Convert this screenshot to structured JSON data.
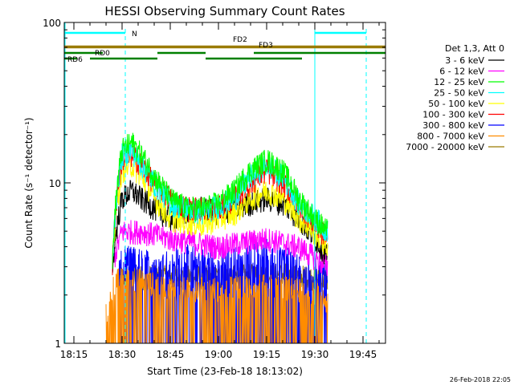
{
  "chart_data": {
    "type": "line",
    "title": "HESSI Observing Summary Count Rates",
    "xlabel": "Start Time (23-Feb-18 18:13:02)",
    "ylabel": "Count Rate (s⁻¹ detector⁻¹)",
    "yscale": "log",
    "ylim": [
      1,
      100
    ],
    "y_ticks": [
      {
        "value": 1,
        "label": "1"
      },
      {
        "value": 10,
        "label": "10"
      },
      {
        "value": 100,
        "label": "100"
      }
    ],
    "xlim": [
      "18:12",
      "19:52"
    ],
    "x_ticks": [
      "18:15",
      "18:30",
      "18:45",
      "19:00",
      "19:15",
      "19:30",
      "19:45"
    ],
    "legend_header": "Det 1,3, Att 0",
    "legend_position": "right",
    "data_start": "18:25",
    "data_end": "19:37",
    "series": [
      {
        "name": "3 - 6 keV",
        "color": "#000000",
        "profile": [
          [
            "18:27",
            3
          ],
          [
            "18:30",
            8
          ],
          [
            "18:33",
            9
          ],
          [
            "18:36",
            8
          ],
          [
            "18:40",
            7
          ],
          [
            "18:45",
            6
          ],
          [
            "18:50",
            6.5
          ],
          [
            "18:55",
            7
          ],
          [
            "19:00",
            6.5
          ],
          [
            "19:05",
            7
          ],
          [
            "19:10",
            7.5
          ],
          [
            "19:15",
            8
          ],
          [
            "19:20",
            7.5
          ],
          [
            "19:25",
            6
          ],
          [
            "19:30",
            4.5
          ],
          [
            "19:34",
            3.5
          ]
        ]
      },
      {
        "name": "6 - 12 keV",
        "color": "#ff00ff",
        "profile": [
          [
            "18:27",
            3
          ],
          [
            "18:30",
            5
          ],
          [
            "18:36",
            5
          ],
          [
            "18:45",
            4.5
          ],
          [
            "19:00",
            4
          ],
          [
            "19:15",
            4.5
          ],
          [
            "19:25",
            4
          ],
          [
            "19:34",
            3
          ]
        ]
      },
      {
        "name": "12 - 25 keV",
        "color": "#00ff00",
        "profile": [
          [
            "18:27",
            3
          ],
          [
            "18:30",
            16
          ],
          [
            "18:33",
            18
          ],
          [
            "18:36",
            15
          ],
          [
            "18:40",
            11
          ],
          [
            "18:45",
            8
          ],
          [
            "18:50",
            7
          ],
          [
            "18:55",
            7
          ],
          [
            "19:00",
            7.5
          ],
          [
            "19:05",
            9
          ],
          [
            "19:10",
            12
          ],
          [
            "19:15",
            14
          ],
          [
            "19:20",
            12
          ],
          [
            "19:25",
            8
          ],
          [
            "19:30",
            6
          ],
          [
            "19:34",
            5
          ]
        ]
      },
      {
        "name": "25 - 50 keV",
        "color": "#00ffff",
        "profile": [
          [
            "18:27",
            3
          ],
          [
            "18:30",
            15
          ],
          [
            "18:33",
            16
          ],
          [
            "18:36",
            13
          ],
          [
            "18:40",
            10
          ],
          [
            "18:45",
            7.5
          ],
          [
            "18:55",
            6.5
          ],
          [
            "19:05",
            8
          ],
          [
            "19:10",
            11
          ],
          [
            "19:15",
            13
          ],
          [
            "19:20",
            11
          ],
          [
            "19:25",
            7.5
          ],
          [
            "19:34",
            5
          ]
        ]
      },
      {
        "name": "50 - 100 keV",
        "color": "#ffff00",
        "profile": [
          [
            "18:27",
            3
          ],
          [
            "18:30",
            12
          ],
          [
            "18:33",
            13
          ],
          [
            "18:36",
            11
          ],
          [
            "18:40",
            8
          ],
          [
            "18:45",
            6
          ],
          [
            "18:55",
            5.5
          ],
          [
            "19:05",
            6.5
          ],
          [
            "19:10",
            8
          ],
          [
            "19:15",
            9
          ],
          [
            "19:20",
            8
          ],
          [
            "19:25",
            6
          ],
          [
            "19:34",
            4
          ]
        ]
      },
      {
        "name": "100 - 300 keV",
        "color": "#ff0000",
        "profile": [
          [
            "18:27",
            3
          ],
          [
            "18:30",
            14
          ],
          [
            "18:33",
            15
          ],
          [
            "18:36",
            13
          ],
          [
            "18:40",
            10
          ],
          [
            "18:45",
            8
          ],
          [
            "18:50",
            7
          ],
          [
            "18:55",
            7
          ],
          [
            "19:00",
            7
          ],
          [
            "19:05",
            8
          ],
          [
            "19:10",
            10
          ],
          [
            "19:15",
            12
          ],
          [
            "19:20",
            10
          ],
          [
            "19:25",
            7.5
          ],
          [
            "19:30",
            5.5
          ],
          [
            "19:34",
            4.5
          ]
        ]
      },
      {
        "name": "300 - 800 keV",
        "color": "#0000ff",
        "profile": [
          [
            "18:29",
            2.8
          ],
          [
            "18:30",
            3.5
          ],
          [
            "18:40",
            3.2
          ],
          [
            "18:50",
            3.5
          ],
          [
            "19:00",
            3.2
          ],
          [
            "19:15",
            3.8
          ],
          [
            "19:25",
            3.2
          ],
          [
            "19:34",
            2.8
          ]
        ]
      },
      {
        "name": "800 - 7000 keV",
        "color": "#ff8c00",
        "profile": [
          [
            "18:25",
            1.5
          ],
          [
            "18:28",
            2.5
          ],
          [
            "18:35",
            2.5
          ],
          [
            "18:45",
            2.2
          ],
          [
            "19:00",
            2.2
          ],
          [
            "19:15",
            2.3
          ],
          [
            "19:30",
            2.1
          ],
          [
            "19:34",
            1.8
          ]
        ]
      },
      {
        "name": "7000 - 20000 keV",
        "color": "#9a7b00",
        "profile": [
          [
            "18:29",
            2.6
          ],
          [
            "18:40",
            2.6
          ],
          [
            "19:00",
            2.6
          ],
          [
            "19:20",
            2.7
          ],
          [
            "19:34",
            2.5
          ]
        ]
      }
    ],
    "annotations": {
      "night": {
        "label": "N",
        "color": "#00ffff",
        "bars": [
          [
            "18:12",
            "18:31"
          ],
          [
            "19:30",
            "19:46"
          ]
        ],
        "boundaries": [
          "18:31",
          "19:30",
          "19:46"
        ]
      },
      "fast_rate": [
        {
          "label": "FD2",
          "color": "#9a7b00",
          "start": "18:12",
          "end": "19:52"
        },
        {
          "label": "FD3",
          "color": "#9a7b00",
          "start": "18:12",
          "end": "19:52"
        }
      ],
      "decimation": [
        {
          "label": "RD0",
          "color": "#008000",
          "segments": [
            [
              "18:12",
              "18:24"
            ],
            [
              "18:41",
              "18:56"
            ],
            [
              "19:11",
              "19:52"
            ]
          ]
        },
        {
          "label": "RD6",
          "color": "#008000",
          "segments": [
            [
              "18:12",
              "18:16"
            ],
            [
              "18:20",
              "18:41"
            ],
            [
              "18:56",
              "19:11"
            ],
            [
              "19:11",
              "19:26"
            ]
          ]
        }
      ]
    }
  },
  "footer": {
    "timestamp": "26-Feb-2018 22:05"
  }
}
